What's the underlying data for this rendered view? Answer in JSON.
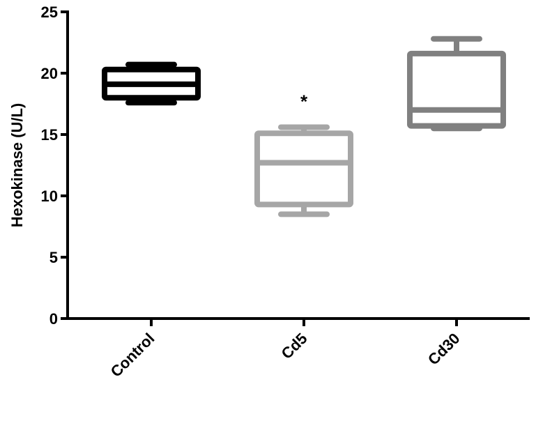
{
  "chart_data": {
    "type": "box",
    "ylabel": "Hexokinase (U/L)",
    "categories": [
      "Control",
      "Cd5",
      "Cd30"
    ],
    "boxes": [
      {
        "min": 17.6,
        "q1": 18.0,
        "median": 19.1,
        "q3": 20.3,
        "max": 20.7,
        "color": "#000000"
      },
      {
        "min": 8.5,
        "q1": 9.3,
        "median": 12.7,
        "q3": 15.1,
        "max": 15.6,
        "color": "#a6a6a6"
      },
      {
        "min": 15.5,
        "q1": 15.7,
        "median": 17.0,
        "q3": 21.6,
        "max": 22.8,
        "color": "#808080"
      }
    ],
    "annotations": [
      {
        "text": "*",
        "x": "Cd5"
      }
    ],
    "ylim": [
      0,
      25
    ],
    "yticks": [
      0,
      5,
      10,
      15,
      20,
      25
    ],
    "grid": false
  }
}
